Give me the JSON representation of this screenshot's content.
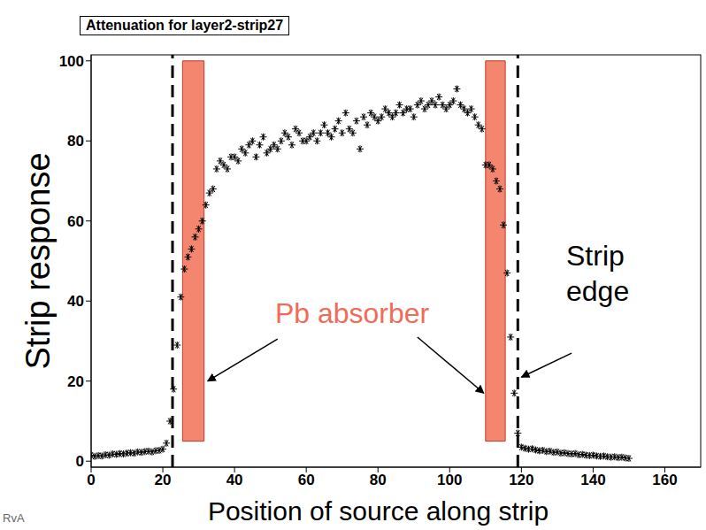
{
  "chart_data": {
    "type": "scatter",
    "title": "Attenuation for layer2-strip27",
    "xlabel": "Position of source along strip",
    "ylabel": "Strip response",
    "x": [
      0,
      1,
      2,
      3,
      4,
      5,
      6,
      7,
      8,
      9,
      10,
      11,
      12,
      13,
      14,
      15,
      16,
      17,
      18,
      19,
      20,
      21,
      22,
      23,
      24,
      25,
      26,
      27,
      28,
      29,
      30,
      31,
      32,
      33,
      34,
      35,
      36,
      37,
      38,
      39,
      40,
      41,
      42,
      43,
      44,
      45,
      46,
      47,
      48,
      49,
      50,
      51,
      52,
      53,
      54,
      55,
      56,
      57,
      58,
      59,
      60,
      61,
      62,
      63,
      64,
      65,
      66,
      67,
      68,
      69,
      70,
      71,
      72,
      73,
      74,
      75,
      76,
      77,
      78,
      79,
      80,
      81,
      82,
      83,
      84,
      85,
      86,
      87,
      88,
      89,
      90,
      91,
      92,
      93,
      94,
      95,
      96,
      97,
      98,
      99,
      100,
      101,
      102,
      103,
      104,
      105,
      106,
      107,
      108,
      109,
      110,
      111,
      112,
      113,
      114,
      115,
      116,
      117,
      118,
      119,
      120,
      121,
      122,
      123,
      124,
      125,
      126,
      127,
      128,
      129,
      130,
      131,
      132,
      133,
      134,
      135,
      136,
      137,
      138,
      139,
      140,
      141,
      142,
      143,
      144,
      145,
      146,
      147,
      148,
      149,
      150
    ],
    "values": [
      1.5,
      1.2,
      1.4,
      1.3,
      1.6,
      1.5,
      1.8,
      1.7,
      1.9,
      1.8,
      2.0,
      2.1,
      2.0,
      2.3,
      2.2,
      2.4,
      2.5,
      2.3,
      2.6,
      2.7,
      3.0,
      4.5,
      10,
      18,
      29,
      41,
      48,
      51,
      53,
      56,
      58,
      60,
      64,
      67,
      68,
      73,
      75,
      74,
      73,
      76,
      76,
      75,
      78,
      77,
      79,
      80,
      76,
      79,
      81,
      77,
      78,
      79,
      78,
      80,
      82,
      81,
      79,
      83,
      82,
      80,
      80,
      81,
      82,
      80,
      82,
      84,
      82,
      81,
      83,
      85,
      82,
      87,
      83,
      82,
      85,
      78,
      86,
      84,
      87,
      86,
      85,
      86,
      88,
      87,
      86,
      87,
      89,
      87,
      88,
      88,
      86,
      89,
      90,
      88,
      89,
      90,
      89,
      91,
      89,
      88,
      89,
      90,
      93,
      89,
      88,
      87,
      88,
      86,
      84,
      83,
      74,
      74,
      73,
      70,
      68,
      59,
      47,
      31,
      17,
      7,
      3.5,
      3.2,
      3.0,
      3.1,
      2.8,
      2.6,
      2.7,
      2.4,
      2.5,
      2.2,
      2.3,
      2.0,
      2.1,
      1.9,
      1.8,
      1.9,
      1.6,
      1.7,
      1.5,
      1.4,
      1.5,
      1.3,
      1.2,
      1.3,
      1.1,
      1.0,
      1.1,
      0.9,
      1.0,
      0.8,
      0.7
    ],
    "color": "#000000",
    "marker": "asterisk",
    "xlim": [
      0,
      170
    ],
    "ylim": [
      -1.5,
      101.5
    ],
    "xticks": [
      0,
      20,
      40,
      60,
      80,
      100,
      120,
      140,
      160
    ],
    "yticks": [
      0,
      20,
      40,
      60,
      80,
      100
    ],
    "grid": false,
    "absorbers": {
      "x": [
        [
          25.5,
          31.5
        ],
        [
          110,
          115.5
        ]
      ],
      "y": [
        5,
        100
      ],
      "color": "#f4866f"
    },
    "strip_edges": [
      22.7,
      119
    ],
    "annotations": [
      {
        "text": "Pb absorber",
        "color": "#f26b57"
      },
      {
        "text": "Strip edge",
        "color": "#000000"
      },
      {
        "text": "RvA",
        "color": "#666666"
      }
    ]
  }
}
